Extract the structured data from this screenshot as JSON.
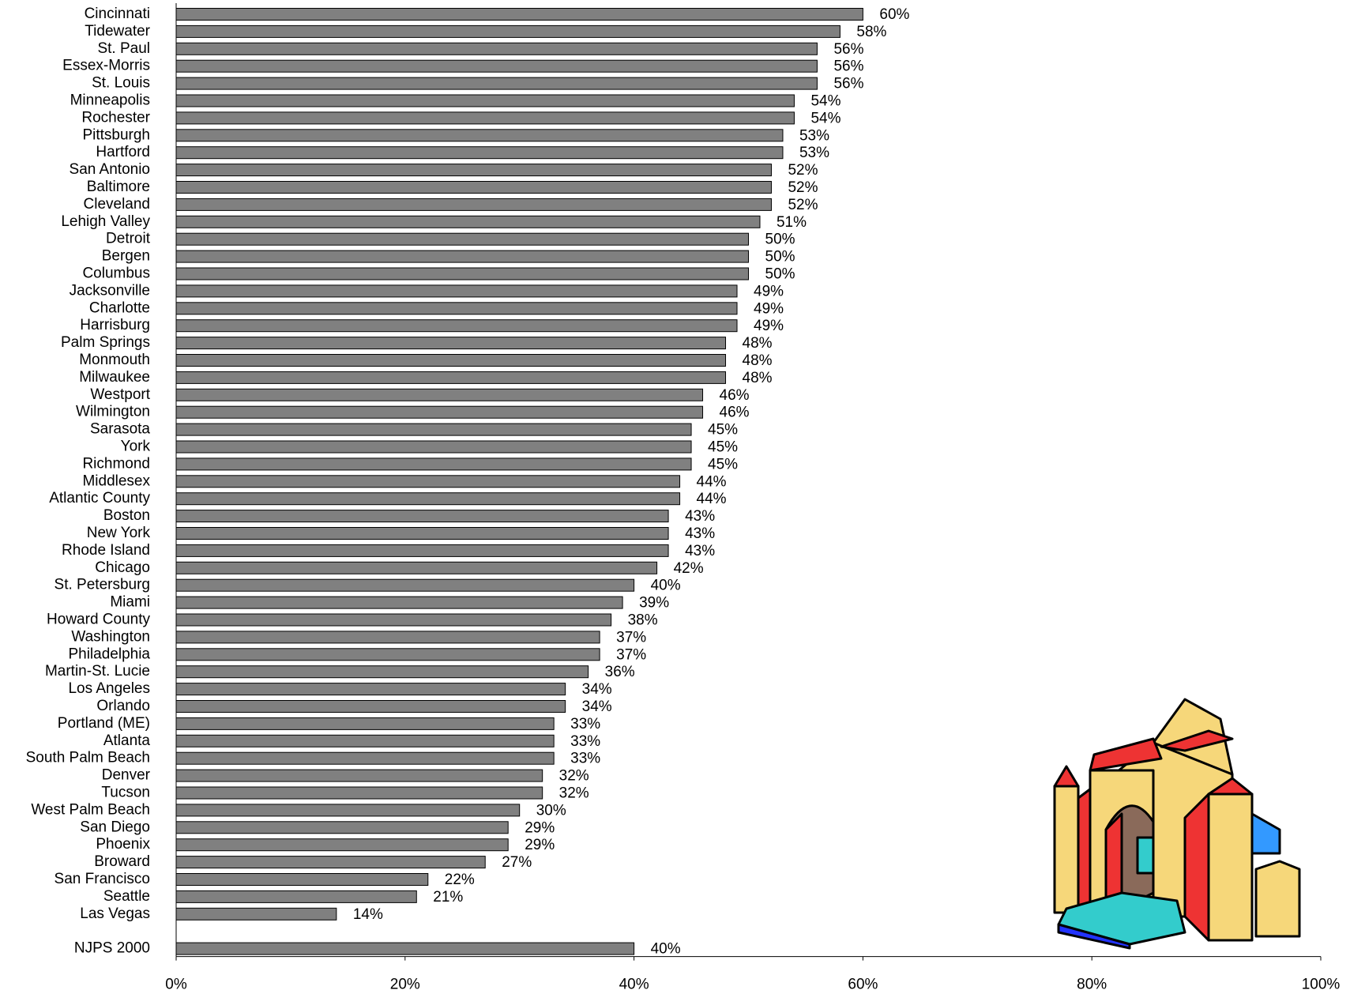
{
  "chart_data": {
    "type": "hbar",
    "categories": [
      "Cincinnati",
      "Tidewater",
      "St. Paul",
      "Essex-Morris",
      "St. Louis",
      "Minneapolis",
      "Rochester",
      "Pittsburgh",
      "Hartford",
      "San Antonio",
      "Baltimore",
      "Cleveland",
      "Lehigh Valley",
      "Detroit",
      "Bergen",
      "Columbus",
      "Jacksonville",
      "Charlotte",
      "Harrisburg",
      "Palm Springs",
      "Monmouth",
      "Milwaukee",
      "Westport",
      "Wilmington",
      "Sarasota",
      "York",
      "Richmond",
      "Middlesex",
      "Atlantic County",
      "Boston",
      "New York",
      "Rhode Island",
      "Chicago",
      "St. Petersburg",
      "Miami",
      "Howard County",
      "Washington",
      "Philadelphia",
      "Martin-St. Lucie",
      "Los Angeles",
      "Orlando",
      "Portland (ME)",
      "Atlanta",
      "South Palm Beach",
      "Denver",
      "Tucson",
      "West Palm Beach",
      "San Diego",
      "Phoenix",
      "Broward",
      "San Francisco",
      "Seattle",
      "Las Vegas"
    ],
    "values": [
      60,
      58,
      56,
      56,
      56,
      54,
      54,
      53,
      53,
      52,
      52,
      52,
      51,
      50,
      50,
      50,
      49,
      49,
      49,
      48,
      48,
      48,
      46,
      46,
      45,
      45,
      45,
      44,
      44,
      43,
      43,
      43,
      42,
      40,
      39,
      38,
      37,
      37,
      36,
      34,
      34,
      33,
      33,
      33,
      32,
      32,
      30,
      29,
      29,
      27,
      22,
      21,
      14
    ],
    "value_labels": [
      "60%",
      "58%",
      "56%",
      "56%",
      "56%",
      "54%",
      "54%",
      "53%",
      "53%",
      "52%",
      "52%",
      "52%",
      "51%",
      "50%",
      "50%",
      "50%",
      "49%",
      "49%",
      "49%",
      "48%",
      "48%",
      "48%",
      "46%",
      "46%",
      "45%",
      "45%",
      "45%",
      "44%",
      "44%",
      "43%",
      "43%",
      "43%",
      "42%",
      "40%",
      "39%",
      "38%",
      "37%",
      "37%",
      "36%",
      "34%",
      "34%",
      "33%",
      "33%",
      "33%",
      "32%",
      "32%",
      "30%",
      "29%",
      "29%",
      "27%",
      "22%",
      "21%",
      "14%"
    ],
    "reference": {
      "name": "NJPS 2000",
      "value": 40,
      "value_label": "40%"
    },
    "color": "#808080",
    "xlim": [
      0,
      100
    ],
    "xticks": [
      {
        "value": 0,
        "label": "0%"
      },
      {
        "value": 20,
        "label": "20%"
      },
      {
        "value": 40,
        "label": "40%"
      },
      {
        "value": 60,
        "label": "60%"
      },
      {
        "value": 80,
        "label": "80%"
      },
      {
        "value": 100,
        "label": "100%"
      }
    ]
  }
}
